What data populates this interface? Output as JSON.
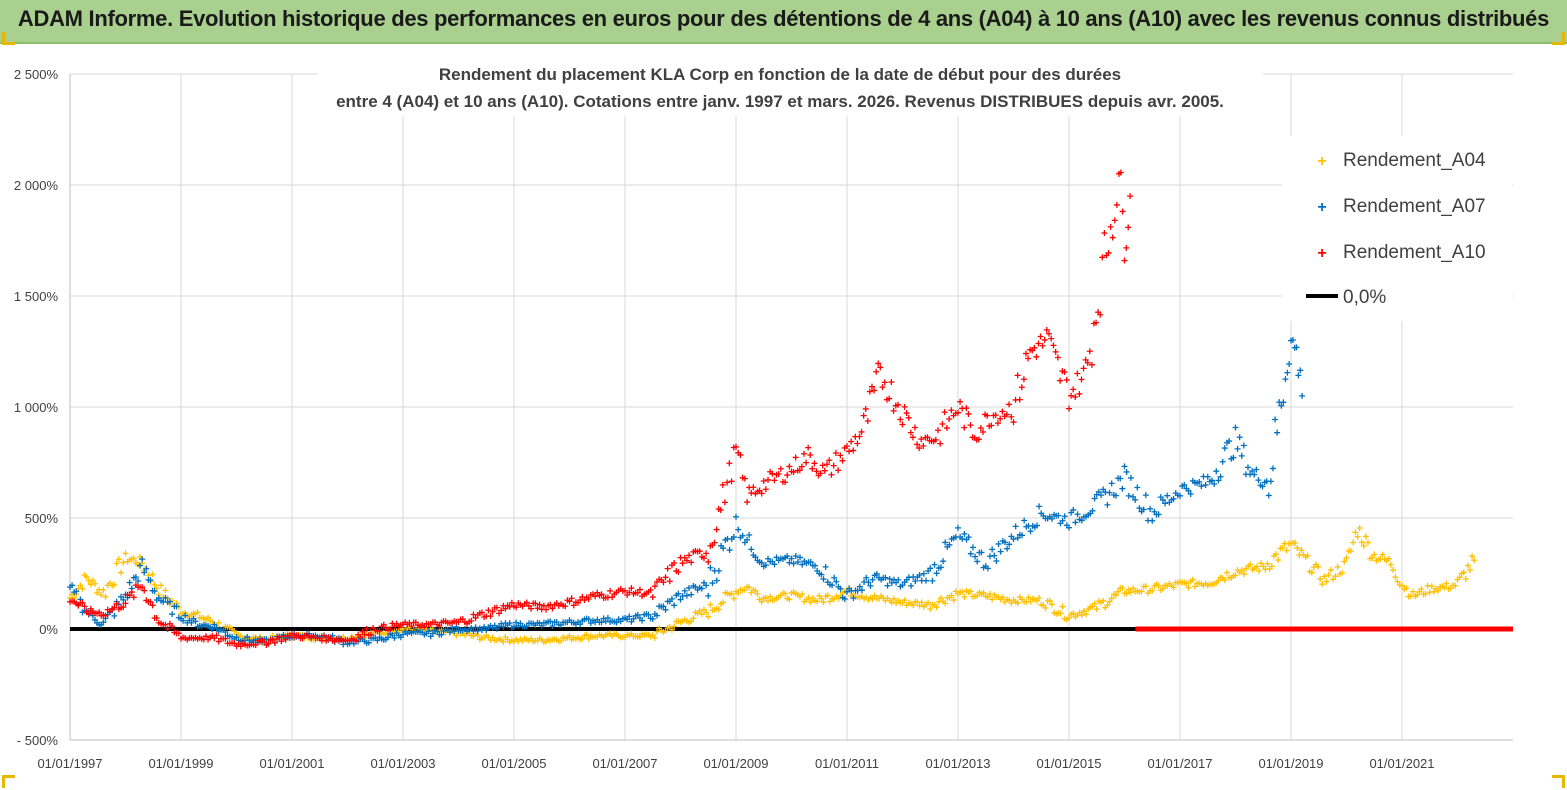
{
  "header": {
    "title": "ADAM Informe. Evolution historique des performances en euros pour des détentions de 4 ans (A04) à 10 ans (A10) avec les revenus connus distribués"
  },
  "colors": {
    "banner": "#a9d08e",
    "a04": "#ffc000",
    "a07": "#0070c0",
    "a10": "#ff0000",
    "zero": "#000000",
    "grid": "#d9d9d9"
  },
  "chart_data": {
    "type": "scatter",
    "title_lines": [
      "Rendement du placement KLA Corp en fonction de la date de début pour des durées",
      "entre 4 (A04) et 10 ans (A10). Cotations entre janv. 1997 et mars. 2026. Revenus DISTRIBUES depuis avr. 2005."
    ],
    "ylim": [
      -500,
      2500
    ],
    "xlim": [
      1997.0,
      2023.0
    ],
    "yticks": [
      -500,
      0,
      500,
      1000,
      1500,
      2000,
      2500
    ],
    "ytick_labels": [
      "- 500%",
      "0%",
      "500%",
      "1 000%",
      "1 500%",
      "2 000%",
      "2 500%"
    ],
    "xticks": [
      1997,
      1999,
      2001,
      2003,
      2005,
      2007,
      2009,
      2011,
      2013,
      2015,
      2017,
      2019,
      2021
    ],
    "xtick_labels": [
      "01/01/1997",
      "01/01/1999",
      "01/01/2001",
      "01/01/2003",
      "01/01/2005",
      "01/01/2007",
      "01/01/2009",
      "01/01/2011",
      "01/01/2013",
      "01/01/2015",
      "01/01/2017",
      "01/01/2019",
      "01/01/2021"
    ],
    "legend_position": "right",
    "series": [
      {
        "name": "Rendement_A04",
        "color": "#ffc000",
        "x": [
          1997.0,
          1997.3,
          1997.6,
          1998.0,
          1998.3,
          1998.6,
          1999.0,
          1999.3,
          1999.6,
          2000.0,
          2000.5,
          2001.0,
          2001.5,
          2002.0,
          2002.5,
          2003.0,
          2003.5,
          2004.0,
          2004.5,
          2005.0,
          2005.5,
          2006.0,
          2006.5,
          2007.0,
          2007.5,
          2008.0,
          2008.5,
          2009.0,
          2009.2,
          2009.5,
          2010.0,
          2010.5,
          2011.0,
          2011.5,
          2012.0,
          2012.5,
          2013.0,
          2013.5,
          2014.0,
          2014.5,
          2015.0,
          2015.5,
          2016.0,
          2016.5,
          2017.0,
          2017.5,
          2018.0,
          2018.5,
          2019.0,
          2019.3,
          2019.6,
          2020.0,
          2020.2,
          2020.5,
          2020.8,
          2021.0,
          2021.2,
          2021.5,
          2021.8,
          2022.0,
          2022.3
        ],
        "y": [
          140,
          230,
          160,
          320,
          300,
          180,
          80,
          60,
          30,
          -30,
          -50,
          -30,
          -40,
          -40,
          -20,
          0,
          -10,
          -20,
          -40,
          -50,
          -50,
          -40,
          -30,
          -30,
          -30,
          30,
          80,
          170,
          190,
          140,
          150,
          130,
          170,
          140,
          120,
          110,
          160,
          150,
          130,
          130,
          60,
          100,
          170,
          180,
          200,
          210,
          260,
          280,
          380,
          300,
          220,
          290,
          450,
          330,
          300,
          200,
          150,
          180,
          190,
          200,
          310
        ]
      },
      {
        "name": "Rendement_A07",
        "color": "#0070c0",
        "x": [
          1997.0,
          1997.3,
          1997.6,
          1998.0,
          1998.3,
          1998.6,
          1999.0,
          1999.3,
          1999.6,
          2000.0,
          2000.5,
          2001.0,
          2001.5,
          2002.0,
          2002.5,
          2003.0,
          2003.5,
          2004.0,
          2004.5,
          2005.0,
          2005.5,
          2006.0,
          2006.5,
          2007.0,
          2007.5,
          2008.0,
          2008.5,
          2009.0,
          2009.2,
          2009.5,
          2010.0,
          2010.5,
          2011.0,
          2011.5,
          2012.0,
          2012.5,
          2013.0,
          2013.5,
          2014.0,
          2014.5,
          2015.0,
          2015.5,
          2016.0,
          2016.5,
          2017.0,
          2017.5,
          2018.0,
          2018.3,
          2018.6,
          2018.9,
          2019.0,
          2019.1,
          2019.2
        ],
        "y": [
          180,
          80,
          20,
          150,
          280,
          140,
          60,
          20,
          10,
          -40,
          -60,
          -30,
          -30,
          -60,
          -50,
          -20,
          -20,
          0,
          0,
          20,
          20,
          30,
          40,
          40,
          60,
          150,
          200,
          480,
          400,
          300,
          310,
          280,
          150,
          230,
          200,
          250,
          420,
          300,
          420,
          520,
          490,
          560,
          680,
          520,
          630,
          660,
          850,
          700,
          660,
          1150,
          1300,
          1250,
          1050
        ]
      },
      {
        "name": "Rendement_A10",
        "color": "#ff0000",
        "x": [
          1997.0,
          1997.3,
          1997.6,
          1998.0,
          1998.3,
          1998.6,
          1999.0,
          1999.3,
          1999.6,
          2000.0,
          2000.5,
          2001.0,
          2001.5,
          2002.0,
          2002.5,
          2003.0,
          2003.5,
          2004.0,
          2004.5,
          2005.0,
          2005.5,
          2006.0,
          2006.5,
          2007.0,
          2007.5,
          2008.0,
          2008.5,
          2008.8,
          2009.0,
          2009.2,
          2009.5,
          2010.0,
          2010.3,
          2010.6,
          2011.0,
          2011.3,
          2011.6,
          2012.0,
          2012.3,
          2012.6,
          2013.0,
          2013.3,
          2013.6,
          2014.0,
          2014.3,
          2014.6,
          2015.0,
          2015.3,
          2015.6,
          2015.9,
          2016.0,
          2016.1
        ],
        "y": [
          140,
          80,
          70,
          120,
          200,
          40,
          -40,
          -40,
          -40,
          -70,
          -60,
          -30,
          -40,
          -50,
          0,
          20,
          20,
          30,
          70,
          110,
          100,
          120,
          150,
          170,
          160,
          300,
          350,
          620,
          800,
          600,
          650,
          720,
          780,
          700,
          800,
          900,
          1150,
          980,
          850,
          860,
          1000,
          880,
          960,
          1000,
          1250,
          1300,
          1050,
          1150,
          1600,
          2050,
          1750,
          1950
        ]
      },
      {
        "name": "0,0%",
        "color": "#000000",
        "x": [
          1997.0,
          2016.2
        ],
        "y": [
          0,
          0
        ]
      }
    ]
  }
}
